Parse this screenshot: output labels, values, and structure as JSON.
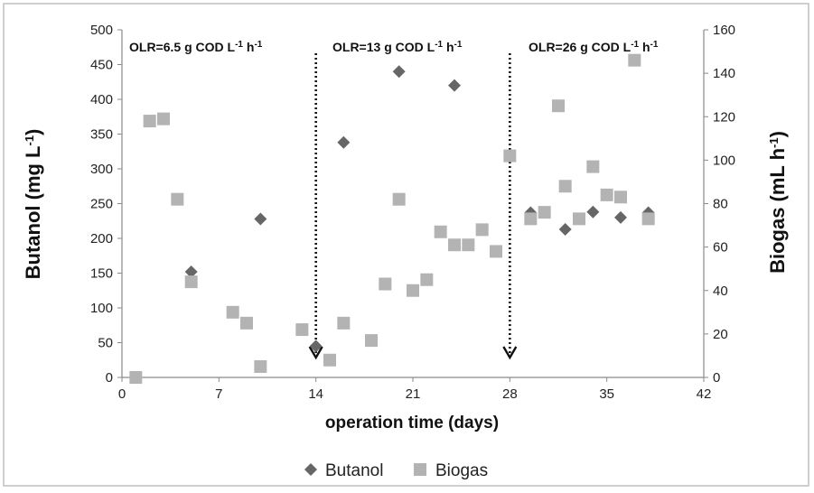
{
  "colors": {
    "butanol": "#666666",
    "biogas": "#b3b3b3",
    "axis": "#8a8a8a",
    "frame": "#bfbfbf"
  },
  "chart_data": {
    "type": "scatter",
    "xlabel": "operation time (days)",
    "ylabel_left_text": "Butanol (mg L",
    "ylabel_left_sup": "-1",
    "ylabel_left_end": ")",
    "ylabel_right_text": "Biogas (mL h",
    "ylabel_right_sup": "-1",
    "ylabel_right_end": ")",
    "xlim": [
      0,
      42
    ],
    "xticks": [
      0,
      7,
      14,
      21,
      28,
      35,
      42
    ],
    "ylim_left": [
      0,
      500
    ],
    "yticks_left": [
      0,
      50,
      100,
      150,
      200,
      250,
      300,
      350,
      400,
      450,
      500
    ],
    "ylim_right": [
      0,
      160
    ],
    "yticks_right": [
      0,
      20,
      40,
      60,
      80,
      100,
      120,
      140,
      160
    ],
    "grid": false,
    "legend_position": "bottom",
    "series": [
      {
        "name": "Butanol",
        "axis": "left",
        "marker": "diamond",
        "x": [
          5,
          10,
          14,
          16,
          20,
          24,
          29.5,
          32,
          34,
          36,
          38
        ],
        "y": [
          152,
          228,
          45,
          338,
          440,
          420,
          237,
          213,
          238,
          230,
          237
        ]
      },
      {
        "name": "Biogas",
        "axis": "right",
        "marker": "square",
        "x": [
          1,
          2,
          3,
          4,
          5,
          8,
          9,
          10,
          13,
          15,
          16,
          18,
          19,
          20,
          21,
          22,
          23,
          24,
          25,
          26,
          27,
          28,
          29.5,
          30.5,
          31.5,
          32,
          33,
          34,
          35,
          36,
          37,
          38
        ],
        "y": [
          0,
          118,
          119,
          82,
          44,
          30,
          25,
          5,
          22,
          8,
          25,
          17,
          43,
          82,
          40,
          45,
          67,
          61,
          61,
          68,
          58,
          102,
          73,
          76,
          125,
          88,
          73,
          97,
          84,
          83,
          146,
          73
        ]
      }
    ],
    "annotations": [
      {
        "main": "OLR=6.5 g COD L",
        "sup1": "-1",
        "mid": " h",
        "sup2": "-1"
      },
      {
        "main": "OLR=13 g COD L",
        "sup1": "-1",
        "mid": " h",
        "sup2": "-1"
      },
      {
        "main": "OLR=26 g COD L",
        "sup1": "-1",
        "mid": " h",
        "sup2": "-1"
      }
    ],
    "arrows_at_x": [
      14,
      28
    ]
  }
}
